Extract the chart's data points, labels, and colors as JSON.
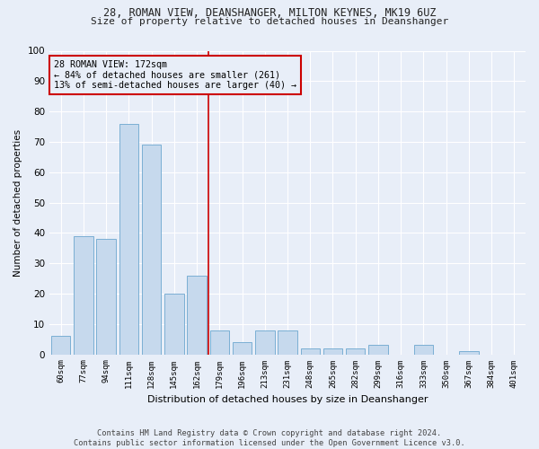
{
  "title1": "28, ROMAN VIEW, DEANSHANGER, MILTON KEYNES, MK19 6UZ",
  "title2": "Size of property relative to detached houses in Deanshanger",
  "xlabel": "Distribution of detached houses by size in Deanshanger",
  "ylabel": "Number of detached properties",
  "annotation_title": "28 ROMAN VIEW: 172sqm",
  "annotation_line1": "← 84% of detached houses are smaller (261)",
  "annotation_line2": "13% of semi-detached houses are larger (40) →",
  "footer1": "Contains HM Land Registry data © Crown copyright and database right 2024.",
  "footer2": "Contains public sector information licensed under the Open Government Licence v3.0.",
  "categories": [
    "60sqm",
    "77sqm",
    "94sqm",
    "111sqm",
    "128sqm",
    "145sqm",
    "162sqm",
    "179sqm",
    "196sqm",
    "213sqm",
    "231sqm",
    "248sqm",
    "265sqm",
    "282sqm",
    "299sqm",
    "316sqm",
    "333sqm",
    "350sqm",
    "367sqm",
    "384sqm",
    "401sqm"
  ],
  "values": [
    6,
    39,
    38,
    76,
    69,
    20,
    26,
    8,
    4,
    8,
    8,
    2,
    2,
    2,
    3,
    0,
    3,
    0,
    1,
    0,
    0
  ],
  "bar_color": "#c6d9ed",
  "bar_edge_color": "#7bafd4",
  "vline_color": "#cc0000",
  "annotation_box_color": "#cc0000",
  "bg_color": "#e8eef8",
  "ylim": [
    0,
    100
  ],
  "yticks": [
    0,
    10,
    20,
    30,
    40,
    50,
    60,
    70,
    80,
    90,
    100
  ]
}
